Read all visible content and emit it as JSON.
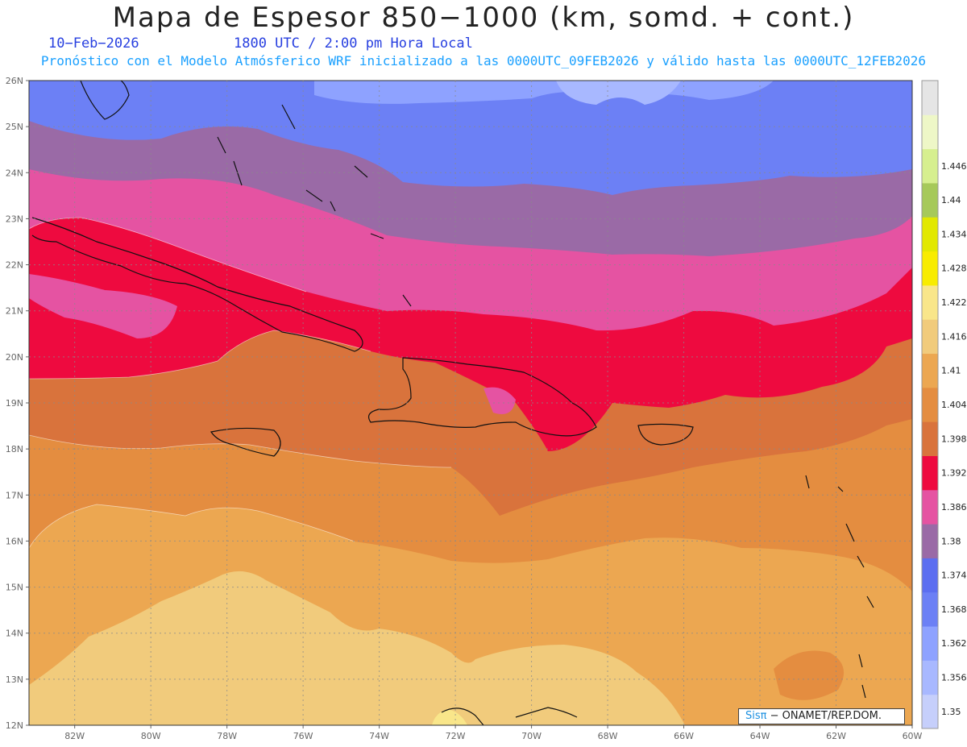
{
  "title": "Mapa de Espesor 850−1000 (km, somd. + cont.)",
  "date_label": "10−Feb−2026",
  "time_label": "1800 UTC / 2:00 pm Hora Local",
  "description": "Pronóstico con el Modelo Atmósferico WRF inicializado a las 0000UTC_09FEB2026 y válido hasta las  0000UTC_12FEB2026",
  "credit": {
    "logo": "Sisπ",
    "text": " − ONAMET/REP.DOM."
  },
  "latitude_labels": [
    "12N",
    "13N",
    "14N",
    "15N",
    "16N",
    "17N",
    "18N",
    "19N",
    "20N",
    "21N",
    "22N",
    "23N",
    "24N",
    "25N",
    "26N"
  ],
  "longitude_labels": [
    "82W",
    "80W",
    "78W",
    "76W",
    "74W",
    "72W",
    "70W",
    "68W",
    "66W",
    "64W",
    "62W",
    "60W"
  ],
  "colorbar": {
    "labels": [
      "1.35",
      "1.356",
      "1.362",
      "1.368",
      "1.374",
      "1.38",
      "1.386",
      "1.392",
      "1.398",
      "1.404",
      "1.41",
      "1.416",
      "1.422",
      "1.428",
      "1.434",
      "1.44",
      "1.446"
    ],
    "colors": [
      "#c6cffb",
      "#a8b8ff",
      "#8ea2ff",
      "#6c80f5",
      "#5c6ef0",
      "#9a6aa6",
      "#e553a2",
      "#ee0a3f",
      "#d9733c",
      "#e48d40",
      "#eca751",
      "#f1cb7c",
      "#f9e68a",
      "#f8ec00",
      "#e2e800",
      "#a6c95a",
      "#d6ef8f",
      "#eef7c7",
      "#e5e5e5"
    ]
  },
  "map_colors": {
    "band_1362": "#6c80f5",
    "band_1356": "#8ea2ff",
    "band_1368": "#9a6aa6",
    "band_1374": "#e553a2",
    "band_1380": "#ee0a3f",
    "band_1386": "#d9733c",
    "band_1392": "#e48d40",
    "band_1398": "#eca751",
    "band_1404": "#f1cb7c",
    "band_1410": "#f9e68a"
  }
}
